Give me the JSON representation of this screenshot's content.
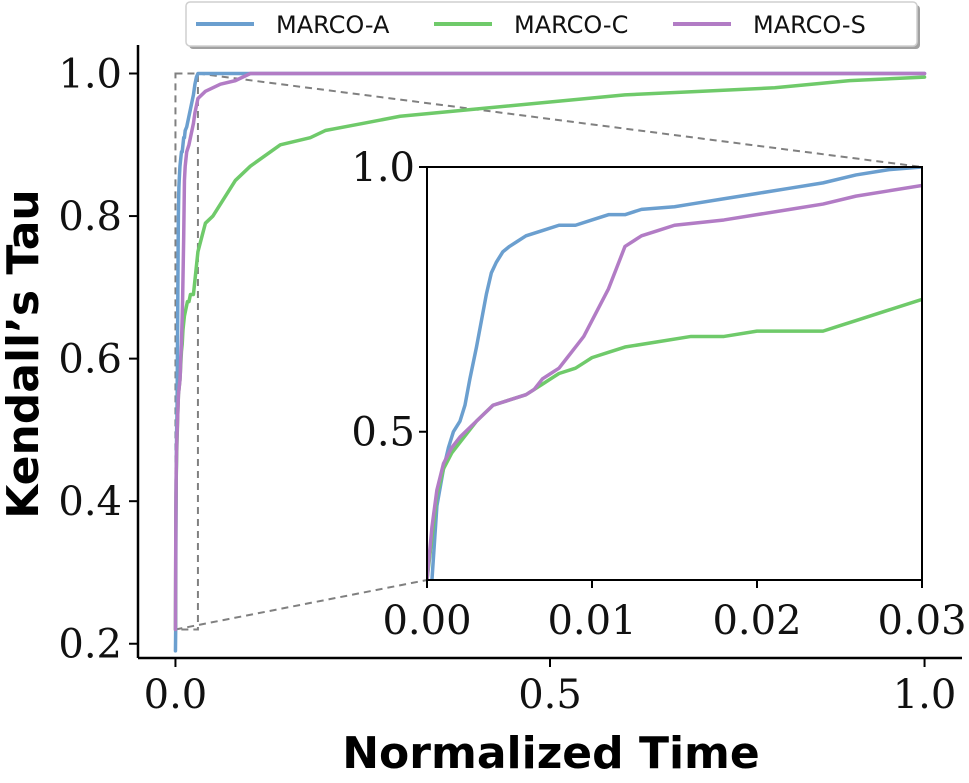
{
  "chart_data": {
    "type": "line",
    "xlabel": "Normalized Time",
    "ylabel": "Kendall’s Tau",
    "grid": false,
    "legend_position": "top",
    "colors": {
      "MARCO-A": "#6b9fcf",
      "MARCO-C": "#6fca6a",
      "MARCO-S": "#b27cc5",
      "zoom_box": "#808080"
    },
    "main": {
      "xlim": [
        -0.05,
        1.05
      ],
      "ylim": [
        0.18,
        1.04
      ],
      "xticks": [
        0.0,
        0.5,
        1.0
      ],
      "xtick_labels": [
        "0.0",
        "0.5",
        "1.0"
      ],
      "yticks": [
        0.2,
        0.4,
        0.6,
        0.8,
        1.0
      ],
      "ytick_labels": [
        "0.2",
        "0.4",
        "0.6",
        "0.8",
        "1.0"
      ],
      "zoom_region": {
        "x": [
          0.0,
          0.03
        ],
        "y": [
          0.22,
          1.0
        ]
      }
    },
    "inset": {
      "xlim": [
        0.0,
        0.03
      ],
      "ylim": [
        0.22,
        1.0
      ],
      "xticks": [
        0.0,
        0.01,
        0.02,
        0.03
      ],
      "xtick_labels": [
        "0.00",
        "0.01",
        "0.02",
        "0.03"
      ],
      "yticks": [
        0.5,
        1.0
      ],
      "ytick_labels": [
        "0.5",
        "1.0"
      ]
    },
    "series": [
      {
        "name": "MARCO-A",
        "x": [
          0.0,
          0.0003,
          0.0006,
          0.001,
          0.0013,
          0.0016,
          0.002,
          0.0023,
          0.0026,
          0.003,
          0.0033,
          0.0036,
          0.0039,
          0.0042,
          0.0046,
          0.005,
          0.0055,
          0.006,
          0.007,
          0.008,
          0.009,
          0.01,
          0.011,
          0.012,
          0.013,
          0.015,
          0.016,
          0.018,
          0.02,
          0.022,
          0.024,
          0.026,
          0.028,
          0.03,
          0.05,
          0.1,
          0.3,
          0.5,
          0.7,
          1.0
        ],
        "y": [
          0.19,
          0.22,
          0.36,
          0.43,
          0.47,
          0.5,
          0.52,
          0.55,
          0.6,
          0.66,
          0.71,
          0.76,
          0.8,
          0.82,
          0.84,
          0.85,
          0.86,
          0.87,
          0.88,
          0.89,
          0.89,
          0.9,
          0.91,
          0.91,
          0.92,
          0.925,
          0.93,
          0.94,
          0.95,
          0.96,
          0.97,
          0.985,
          0.995,
          1.0,
          1.0,
          1.0,
          1.0,
          1.0,
          1.0,
          1.0
        ]
      },
      {
        "name": "MARCO-C",
        "x": [
          0.0,
          0.0003,
          0.0006,
          0.001,
          0.0015,
          0.002,
          0.003,
          0.004,
          0.005,
          0.006,
          0.007,
          0.008,
          0.009,
          0.0095,
          0.01,
          0.011,
          0.012,
          0.014,
          0.016,
          0.018,
          0.02,
          0.022,
          0.024,
          0.025,
          0.026,
          0.028,
          0.03,
          0.04,
          0.05,
          0.08,
          0.1,
          0.14,
          0.18,
          0.2,
          0.25,
          0.3,
          0.4,
          0.5,
          0.6,
          0.7,
          0.8,
          0.9,
          1.0
        ],
        "y": [
          0.22,
          0.3,
          0.38,
          0.43,
          0.46,
          0.48,
          0.52,
          0.55,
          0.56,
          0.57,
          0.59,
          0.61,
          0.62,
          0.63,
          0.64,
          0.65,
          0.66,
          0.67,
          0.68,
          0.68,
          0.69,
          0.69,
          0.69,
          0.7,
          0.71,
          0.73,
          0.75,
          0.79,
          0.8,
          0.85,
          0.87,
          0.9,
          0.91,
          0.92,
          0.93,
          0.94,
          0.95,
          0.96,
          0.97,
          0.975,
          0.98,
          0.99,
          0.995
        ]
      },
      {
        "name": "MARCO-S",
        "x": [
          0.0,
          0.0003,
          0.0006,
          0.001,
          0.0015,
          0.002,
          0.003,
          0.004,
          0.005,
          0.006,
          0.0065,
          0.007,
          0.0075,
          0.008,
          0.0085,
          0.009,
          0.0095,
          0.01,
          0.0105,
          0.011,
          0.0115,
          0.012,
          0.013,
          0.014,
          0.015,
          0.018,
          0.02,
          0.022,
          0.024,
          0.026,
          0.028,
          0.03,
          0.04,
          0.06,
          0.08,
          0.1,
          0.3,
          0.5,
          0.7,
          1.0
        ],
        "y": [
          0.22,
          0.32,
          0.39,
          0.44,
          0.47,
          0.49,
          0.52,
          0.55,
          0.56,
          0.57,
          0.58,
          0.6,
          0.61,
          0.62,
          0.64,
          0.66,
          0.68,
          0.71,
          0.74,
          0.77,
          0.81,
          0.85,
          0.87,
          0.88,
          0.89,
          0.9,
          0.91,
          0.92,
          0.93,
          0.945,
          0.955,
          0.965,
          0.975,
          0.985,
          0.99,
          1.0,
          1.0,
          1.0,
          1.0,
          1.0
        ]
      }
    ]
  }
}
